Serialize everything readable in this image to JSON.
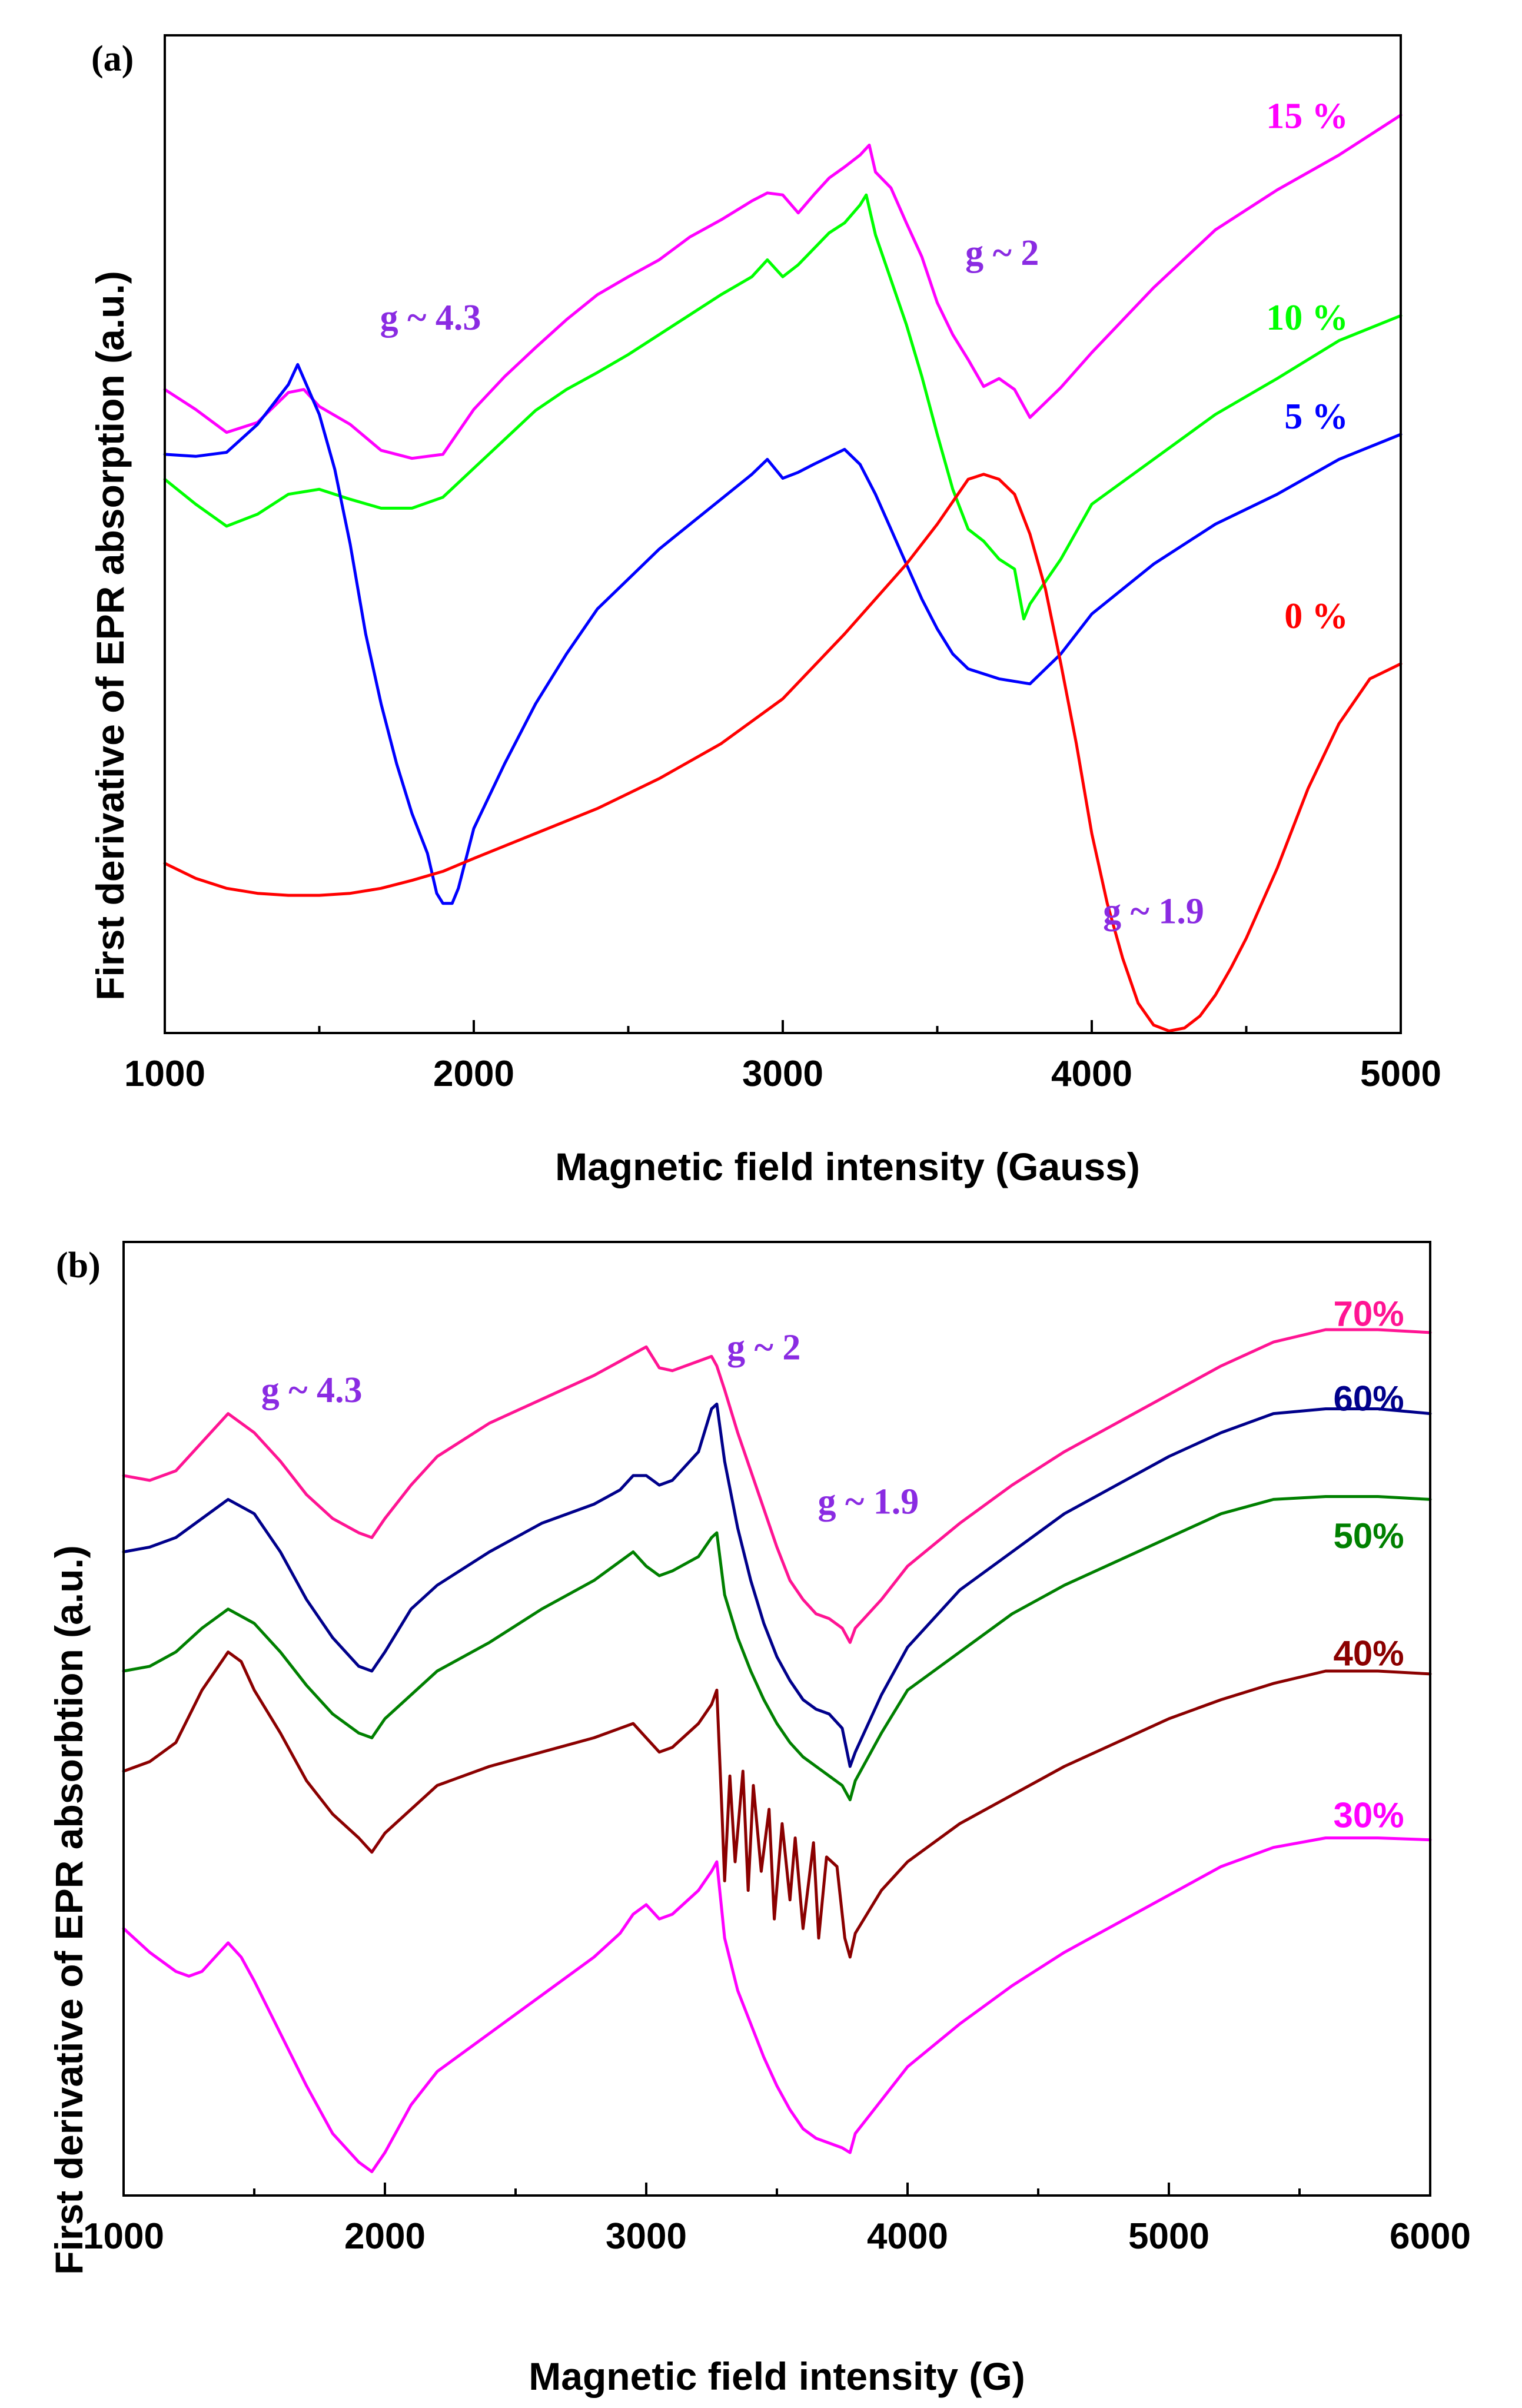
{
  "chart_data": [
    {
      "type": "line",
      "panel_label": "(a)",
      "xlabel": "Magnetic field intensity (Gauss)",
      "ylabel": "First derivative of EPR absorption (a.u.)",
      "xlim": [
        1000,
        5000
      ],
      "ylim": [
        0,
        100
      ],
      "xticks": [
        1000,
        2000,
        3000,
        4000,
        5000
      ],
      "grid": false,
      "annotations": [
        {
          "text": "g ~ 4.3",
          "x": 1860,
          "y": 70.5,
          "color": "#8a2be2"
        },
        {
          "text": "g ~ 2",
          "x": 3710,
          "y": 77.0,
          "color": "#8a2be2"
        },
        {
          "text": "g ~ 1.9",
          "x": 4200,
          "y": 11.0,
          "color": "#8a2be2"
        }
      ],
      "series": [
        {
          "name": "15 %",
          "color": "#ff00ff",
          "label_x": 4830,
          "label_y": 90.7,
          "x": [
            1000,
            1100,
            1200,
            1300,
            1400,
            1450,
            1500,
            1600,
            1700,
            1800,
            1900,
            2000,
            2100,
            2200,
            2300,
            2400,
            2500,
            2600,
            2700,
            2800,
            2900,
            2950,
            3000,
            3050,
            3100,
            3150,
            3200,
            3250,
            3280,
            3300,
            3350,
            3400,
            3450,
            3500,
            3550,
            3600,
            3650,
            3700,
            3750,
            3800,
            3900,
            4000,
            4200,
            4400,
            4600,
            4800,
            5000
          ],
          "y": [
            64.5,
            62.5,
            60.2,
            61.2,
            64.2,
            64.5,
            62.8,
            61.0,
            58.4,
            57.6,
            58.0,
            62.5,
            65.8,
            68.7,
            71.5,
            74.0,
            75.8,
            77.5,
            79.8,
            81.5,
            83.4,
            84.2,
            84.0,
            82.2,
            84.0,
            85.7,
            86.8,
            88.0,
            89.0,
            86.3,
            84.7,
            81.2,
            77.8,
            73.2,
            70.0,
            67.5,
            64.8,
            65.6,
            64.5,
            61.7,
            64.7,
            68.2,
            74.7,
            80.5,
            84.5,
            88.0,
            92.0
          ]
        },
        {
          "name": "10 %",
          "color": "#00ff00",
          "label_x": 4830,
          "label_y": 70.5,
          "x": [
            1000,
            1100,
            1200,
            1300,
            1400,
            1500,
            1600,
            1700,
            1800,
            1900,
            2000,
            2100,
            2200,
            2300,
            2400,
            2500,
            2600,
            2700,
            2800,
            2900,
            2950,
            3000,
            3050,
            3100,
            3150,
            3200,
            3250,
            3270,
            3300,
            3350,
            3400,
            3450,
            3500,
            3550,
            3600,
            3650,
            3700,
            3750,
            3780,
            3800,
            3900,
            4000,
            4200,
            4400,
            4600,
            4800,
            5000
          ],
          "y": [
            55.5,
            53.0,
            50.8,
            52.0,
            54.0,
            54.5,
            53.5,
            52.6,
            52.6,
            53.7,
            56.6,
            59.5,
            62.4,
            64.5,
            66.2,
            68.0,
            70.0,
            72.0,
            74.0,
            75.8,
            77.5,
            75.8,
            77.0,
            78.6,
            80.2,
            81.2,
            83.0,
            84.0,
            80.0,
            75.5,
            71.0,
            65.8,
            60.0,
            54.5,
            50.5,
            49.3,
            47.5,
            46.5,
            41.5,
            43.0,
            47.5,
            53.0,
            57.5,
            62.0,
            65.6,
            69.4,
            71.9
          ]
        },
        {
          "name": "5 %",
          "color": "#0000ff",
          "label_x": 4830,
          "label_y": 60.6,
          "x": [
            1000,
            1100,
            1200,
            1300,
            1400,
            1430,
            1500,
            1550,
            1600,
            1650,
            1700,
            1750,
            1800,
            1850,
            1880,
            1900,
            1930,
            1950,
            2000,
            2100,
            2200,
            2300,
            2400,
            2500,
            2600,
            2700,
            2800,
            2900,
            2950,
            3000,
            3050,
            3100,
            3200,
            3250,
            3300,
            3350,
            3400,
            3450,
            3500,
            3550,
            3600,
            3700,
            3800,
            3900,
            4000,
            4200,
            4400,
            4600,
            4800,
            5000
          ],
          "y": [
            58.0,
            57.8,
            58.2,
            61.0,
            65.0,
            67.0,
            62.0,
            56.5,
            49.0,
            40.0,
            33.0,
            27.0,
            22.0,
            18.0,
            14.0,
            13.0,
            13.0,
            14.5,
            20.5,
            27.0,
            33.0,
            38.0,
            42.5,
            45.5,
            48.5,
            51.0,
            53.5,
            56.0,
            57.5,
            55.6,
            56.2,
            57.0,
            58.5,
            57.0,
            54.0,
            50.5,
            47.0,
            43.5,
            40.5,
            38.0,
            36.5,
            35.5,
            35.0,
            38.0,
            42.0,
            47.0,
            51.0,
            54.0,
            57.5,
            60.0
          ]
        },
        {
          "name": "0 %",
          "color": "#ff0000",
          "label_x": 4830,
          "label_y": 40.6,
          "x": [
            1000,
            1100,
            1200,
            1300,
            1400,
            1500,
            1600,
            1700,
            1800,
            1900,
            2000,
            2200,
            2400,
            2600,
            2800,
            3000,
            3200,
            3400,
            3500,
            3600,
            3650,
            3700,
            3750,
            3800,
            3850,
            3900,
            3950,
            4000,
            4050,
            4100,
            4150,
            4200,
            4250,
            4300,
            4350,
            4400,
            4450,
            4500,
            4600,
            4700,
            4800,
            4900,
            5000
          ],
          "y": [
            17.0,
            15.5,
            14.5,
            14.0,
            13.8,
            13.8,
            14.0,
            14.5,
            15.3,
            16.2,
            17.5,
            20.0,
            22.5,
            25.5,
            29.0,
            33.5,
            40.0,
            47.0,
            51.0,
            55.5,
            56.0,
            55.5,
            54.0,
            50.0,
            44.5,
            37.0,
            29.0,
            20.0,
            13.0,
            7.5,
            3.0,
            0.8,
            0.2,
            0.5,
            1.7,
            3.8,
            6.5,
            9.5,
            16.5,
            24.5,
            31.0,
            35.5,
            37.0
          ]
        }
      ]
    },
    {
      "type": "line",
      "panel_label": "(b)",
      "xlabel": "Magnetic field intensity (G)",
      "ylabel": "First derivative of EPR absorbtion (a.u.)",
      "xlim": [
        1000,
        6000
      ],
      "ylim": [
        0,
        100
      ],
      "xticks": [
        1000,
        2000,
        3000,
        4000,
        5000,
        6000
      ],
      "grid": false,
      "annotations": [
        {
          "text": "g ~ 4.3",
          "x": 1720,
          "y": 83.2,
          "color": "#8a2be2"
        },
        {
          "text": "g ~ 2",
          "x": 3450,
          "y": 87.7,
          "color": "#8a2be2"
        },
        {
          "text": "g ~ 1.9",
          "x": 3850,
          "y": 71.5,
          "color": "#8a2be2"
        }
      ],
      "series": [
        {
          "name": "70%",
          "color": "#ff1493",
          "label_x": 5900,
          "label_y": 91.2,
          "x": [
            1000,
            1100,
            1200,
            1300,
            1400,
            1500,
            1600,
            1700,
            1800,
            1900,
            1950,
            2000,
            2100,
            2200,
            2400,
            2600,
            2800,
            2900,
            3000,
            3050,
            3100,
            3200,
            3250,
            3270,
            3300,
            3350,
            3400,
            3450,
            3500,
            3550,
            3600,
            3650,
            3700,
            3750,
            3780,
            3800,
            3900,
            4000,
            4200,
            4400,
            4600,
            4800,
            5000,
            5200,
            5400,
            5600,
            5800,
            6000
          ],
          "y": [
            75.5,
            75.0,
            76.0,
            79.0,
            82.0,
            80.0,
            77.0,
            73.5,
            71.0,
            69.5,
            69.0,
            71.0,
            74.5,
            77.5,
            81.0,
            83.5,
            86.0,
            87.5,
            89.0,
            86.8,
            86.5,
            87.5,
            88.0,
            87.0,
            84.5,
            80.0,
            76.0,
            72.0,
            68.0,
            64.5,
            62.5,
            61.0,
            60.5,
            59.5,
            58.0,
            59.5,
            62.5,
            66.0,
            70.5,
            74.5,
            78.0,
            81.0,
            84.0,
            87.0,
            89.5,
            90.8,
            90.8,
            90.5
          ]
        },
        {
          "name": "60%",
          "color": "#00008b",
          "label_x": 5900,
          "label_y": 82.3,
          "x": [
            1000,
            1100,
            1200,
            1300,
            1400,
            1500,
            1600,
            1700,
            1800,
            1900,
            1950,
            2000,
            2100,
            2200,
            2400,
            2600,
            2800,
            2900,
            2950,
            3000,
            3050,
            3100,
            3200,
            3250,
            3270,
            3300,
            3350,
            3400,
            3450,
            3500,
            3550,
            3600,
            3650,
            3700,
            3750,
            3780,
            3800,
            3900,
            4000,
            4200,
            4400,
            4600,
            4800,
            5000,
            5200,
            5400,
            5600,
            5800,
            6000
          ],
          "y": [
            67.5,
            68.0,
            69.0,
            71.0,
            73.0,
            71.5,
            67.5,
            62.5,
            58.5,
            55.5,
            55.0,
            57.0,
            61.5,
            64.0,
            67.5,
            70.5,
            72.5,
            74.0,
            75.5,
            75.5,
            74.5,
            75.0,
            78.0,
            82.5,
            83.0,
            77.0,
            70.0,
            64.5,
            60.0,
            56.5,
            54.0,
            52.0,
            51.0,
            50.5,
            49.0,
            45.0,
            46.5,
            52.5,
            57.5,
            63.5,
            67.5,
            71.5,
            74.5,
            77.5,
            80.0,
            82.0,
            82.5,
            82.5,
            82.0
          ]
        },
        {
          "name": "50%",
          "color": "#008000",
          "label_x": 5900,
          "label_y": 67.9,
          "x": [
            1000,
            1100,
            1200,
            1300,
            1400,
            1500,
            1600,
            1700,
            1800,
            1900,
            1950,
            2000,
            2100,
            2200,
            2400,
            2600,
            2800,
            2900,
            2950,
            3000,
            3050,
            3100,
            3200,
            3250,
            3270,
            3300,
            3350,
            3400,
            3450,
            3500,
            3550,
            3600,
            3650,
            3700,
            3750,
            3780,
            3800,
            3900,
            4000,
            4200,
            4400,
            4600,
            4800,
            5000,
            5200,
            5400,
            5600,
            5800,
            6000
          ],
          "y": [
            55.0,
            55.5,
            57.0,
            59.5,
            61.5,
            60.0,
            57.0,
            53.5,
            50.5,
            48.5,
            48.0,
            50.0,
            52.5,
            55.0,
            58.0,
            61.5,
            64.5,
            66.5,
            67.5,
            66.0,
            65.0,
            65.5,
            67.0,
            69.0,
            69.5,
            63.0,
            58.5,
            55.0,
            52.0,
            49.5,
            47.5,
            46.0,
            45.0,
            44.0,
            43.0,
            41.5,
            43.5,
            48.5,
            53.0,
            57.0,
            61.0,
            64.0,
            66.5,
            69.0,
            71.5,
            73.0,
            73.3,
            73.3,
            73.0
          ]
        },
        {
          "name": "40%",
          "color": "#8b0000",
          "label_x": 5900,
          "label_y": 55.6,
          "x": [
            1000,
            1100,
            1200,
            1300,
            1400,
            1450,
            1500,
            1600,
            1700,
            1800,
            1900,
            1950,
            2000,
            2100,
            2200,
            2400,
            2600,
            2800,
            2900,
            2950,
            3000,
            3050,
            3100,
            3200,
            3250,
            3270,
            3290,
            3300,
            3320,
            3340,
            3370,
            3390,
            3410,
            3440,
            3470,
            3490,
            3520,
            3550,
            3570,
            3600,
            3640,
            3660,
            3690,
            3730,
            3760,
            3780,
            3800,
            3900,
            4000,
            4200,
            4400,
            4600,
            4800,
            5000,
            5200,
            5400,
            5600,
            5800,
            6000
          ],
          "y": [
            44.5,
            45.5,
            47.5,
            53.0,
            57.0,
            56.0,
            53.0,
            48.5,
            43.5,
            40.0,
            37.5,
            36.0,
            38.0,
            40.5,
            43.0,
            45.0,
            46.5,
            48.0,
            49.0,
            49.5,
            48.0,
            46.5,
            47.0,
            49.5,
            51.5,
            53.0,
            40.0,
            33.0,
            44.0,
            35.0,
            44.5,
            32.0,
            43.0,
            34.0,
            40.5,
            29.0,
            39.0,
            31.0,
            37.5,
            28.0,
            37.0,
            27.0,
            35.5,
            34.5,
            27.0,
            25.0,
            27.5,
            32.0,
            35.0,
            39.0,
            42.0,
            45.0,
            47.5,
            50.0,
            52.0,
            53.7,
            55.0,
            55.0,
            54.7
          ]
        },
        {
          "name": "30%",
          "color": "#ff00ff",
          "label_x": 5900,
          "label_y": 38.6,
          "x": [
            1000,
            1100,
            1200,
            1250,
            1300,
            1350,
            1400,
            1450,
            1500,
            1600,
            1700,
            1800,
            1900,
            1950,
            2000,
            2100,
            2200,
            2400,
            2600,
            2800,
            2900,
            2950,
            3000,
            3050,
            3100,
            3200,
            3250,
            3270,
            3300,
            3350,
            3400,
            3450,
            3500,
            3550,
            3600,
            3650,
            3700,
            3750,
            3780,
            3800,
            3900,
            4000,
            4200,
            4400,
            4600,
            4800,
            5000,
            5200,
            5400,
            5600,
            5800,
            6000
          ],
          "y": [
            28.0,
            25.5,
            23.5,
            23.0,
            23.5,
            25.0,
            26.5,
            25.0,
            22.5,
            17.0,
            11.5,
            6.5,
            3.5,
            2.5,
            4.5,
            9.5,
            13.0,
            17.0,
            21.0,
            25.0,
            27.5,
            29.5,
            30.5,
            29.0,
            29.5,
            32.0,
            34.0,
            35.0,
            27.0,
            21.5,
            18.0,
            14.5,
            11.5,
            9.0,
            7.0,
            6.0,
            5.5,
            5.0,
            4.5,
            6.5,
            10.0,
            13.5,
            18.0,
            22.0,
            25.5,
            28.5,
            31.5,
            34.5,
            36.5,
            37.5,
            37.5,
            37.3
          ]
        }
      ]
    }
  ]
}
